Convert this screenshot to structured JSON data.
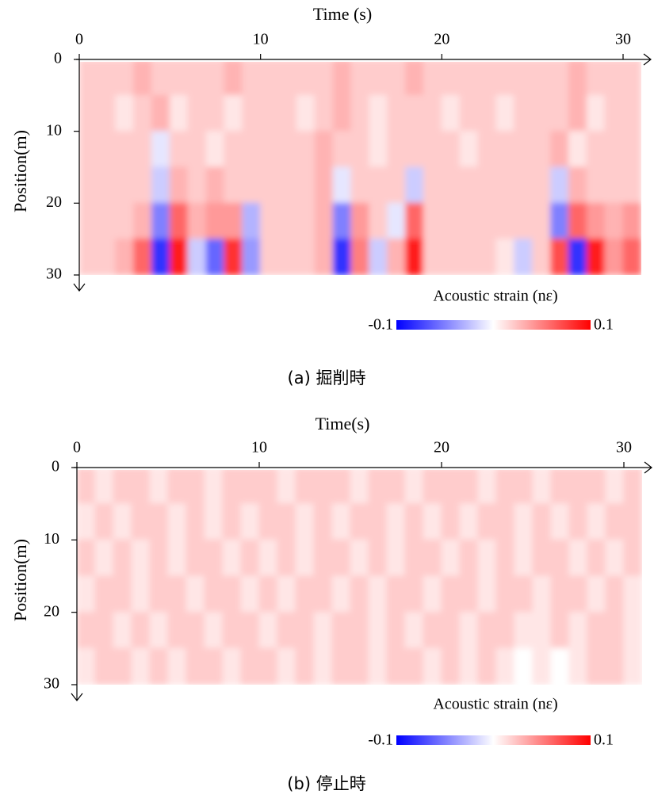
{
  "chart_data": [
    {
      "type": "heatmap",
      "x_label": "Time (s)",
      "y_label": "Position(m)",
      "caption": "(a) 掘削時",
      "xlim": [
        0,
        31
      ],
      "xticks": [
        0,
        10,
        20,
        30
      ],
      "ylim": [
        0,
        30
      ],
      "yticks": [
        0,
        10,
        20,
        30
      ],
      "colorbar_label": "Acoustic strain (nε)",
      "zlim": [
        -0.1,
        0.1
      ],
      "zticks": [
        -0.1,
        0.1
      ],
      "cmap": [
        "#0000ff",
        "#ffffff",
        "#ff0000"
      ],
      "values": [
        [
          0.02,
          0.02,
          0.02,
          0.03,
          0.02,
          0.02,
          0.02,
          0.02,
          0.03,
          0.02,
          0.02,
          0.02,
          0.02,
          0.02,
          0.03,
          0.02,
          0.02,
          0.02,
          0.03,
          0.02,
          0.02,
          0.02,
          0.02,
          0.02,
          0.02,
          0.02,
          0.02,
          0.03,
          0.02,
          0.02,
          0.02
        ],
        [
          0.02,
          0.02,
          0.01,
          0.02,
          0.03,
          0.01,
          0.02,
          0.02,
          0.01,
          0.02,
          0.02,
          0.02,
          0.01,
          0.02,
          0.03,
          0.02,
          0.01,
          0.02,
          0.02,
          0.02,
          0.01,
          0.02,
          0.02,
          0.01,
          0.02,
          0.02,
          0.02,
          0.03,
          0.01,
          0.02,
          0.02
        ],
        [
          0.02,
          0.02,
          0.02,
          0.02,
          -0.01,
          0.02,
          0.02,
          0.01,
          0.02,
          0.02,
          0.02,
          0.02,
          0.02,
          0.03,
          0.02,
          0.02,
          0.01,
          0.02,
          0.02,
          0.02,
          0.02,
          0.01,
          0.02,
          0.02,
          0.02,
          0.02,
          0.03,
          0.01,
          0.02,
          0.02,
          0.02
        ],
        [
          0.02,
          0.02,
          0.02,
          0.02,
          -0.02,
          0.03,
          0.02,
          0.03,
          0.02,
          0.02,
          0.02,
          0.02,
          0.02,
          0.03,
          -0.01,
          0.02,
          0.02,
          0.02,
          -0.02,
          0.02,
          0.02,
          0.02,
          0.02,
          0.02,
          0.02,
          0.02,
          -0.02,
          0.03,
          0.02,
          0.02,
          0.02
        ],
        [
          0.02,
          0.02,
          0.02,
          0.03,
          -0.05,
          0.06,
          0.03,
          0.04,
          0.04,
          -0.03,
          0.02,
          0.02,
          0.02,
          0.03,
          -0.05,
          0.04,
          0.02,
          -0.01,
          0.06,
          0.02,
          0.02,
          0.02,
          0.02,
          0.02,
          0.02,
          0.02,
          -0.05,
          0.06,
          0.04,
          0.03,
          0.04
        ],
        [
          0.02,
          0.02,
          0.03,
          0.06,
          -0.08,
          0.09,
          -0.02,
          -0.06,
          0.08,
          -0.04,
          0.02,
          0.02,
          0.02,
          0.03,
          -0.08,
          0.05,
          -0.02,
          0.03,
          0.09,
          0.02,
          0.02,
          0.02,
          0.02,
          0.01,
          -0.02,
          0.02,
          0.07,
          -0.08,
          0.09,
          0.04,
          0.06
        ]
      ]
    },
    {
      "type": "heatmap",
      "x_label": "Time(s)",
      "y_label": "Position(m)",
      "caption": "(b) 停止時",
      "xlim": [
        0,
        31
      ],
      "xticks": [
        0,
        10,
        20,
        30
      ],
      "ylim": [
        0,
        30
      ],
      "yticks": [
        0,
        10,
        20,
        30
      ],
      "colorbar_label": "Acoustic strain (nε)",
      "zlim": [
        -0.1,
        0.1
      ],
      "zticks": [
        -0.1,
        0.1
      ],
      "cmap": [
        "#0000ff",
        "#ffffff",
        "#ff0000"
      ],
      "values": [
        [
          0.02,
          0.01,
          0.02,
          0.02,
          0.01,
          0.02,
          0.02,
          0.01,
          0.02,
          0.02,
          0.02,
          0.01,
          0.02,
          0.02,
          0.02,
          0.01,
          0.02,
          0.02,
          0.01,
          0.02,
          0.02,
          0.02,
          0.01,
          0.02,
          0.02,
          0.01,
          0.02,
          0.02,
          0.02,
          0.01,
          0.02
        ],
        [
          0.01,
          0.02,
          0.01,
          0.02,
          0.02,
          0.01,
          0.02,
          0.01,
          0.02,
          0.01,
          0.02,
          0.02,
          0.01,
          0.02,
          0.01,
          0.02,
          0.02,
          0.01,
          0.02,
          0.01,
          0.02,
          0.01,
          0.02,
          0.02,
          0.01,
          0.02,
          0.01,
          0.02,
          0.01,
          0.02,
          0.02
        ],
        [
          0.02,
          0.01,
          0.02,
          0.01,
          0.02,
          0.01,
          0.02,
          0.02,
          0.01,
          0.02,
          0.01,
          0.02,
          0.01,
          0.02,
          0.02,
          0.01,
          0.02,
          0.01,
          0.02,
          0.02,
          0.01,
          0.02,
          0.01,
          0.02,
          0.01,
          0.02,
          0.02,
          0.01,
          0.02,
          0.01,
          0.02
        ],
        [
          0.01,
          0.02,
          0.02,
          0.01,
          0.02,
          0.02,
          0.01,
          0.02,
          0.02,
          0.01,
          0.02,
          0.01,
          0.02,
          0.02,
          0.01,
          0.02,
          0.01,
          0.02,
          0.02,
          0.01,
          0.02,
          0.02,
          0.01,
          0.02,
          0.02,
          0.01,
          0.02,
          0.02,
          0.01,
          0.02,
          0.01
        ],
        [
          0.02,
          0.02,
          0.01,
          0.02,
          0.01,
          0.02,
          0.02,
          0.01,
          0.02,
          0.02,
          0.01,
          0.02,
          0.02,
          0.01,
          0.02,
          0.02,
          0.01,
          0.02,
          0.01,
          0.02,
          0.02,
          0.01,
          0.02,
          0.02,
          0.01,
          0.01,
          0.02,
          0.01,
          0.02,
          0.02,
          0.01
        ],
        [
          0.01,
          0.02,
          0.02,
          0.01,
          0.02,
          0.01,
          0.02,
          0.02,
          0.01,
          0.02,
          0.02,
          0.01,
          0.02,
          0.01,
          0.02,
          0.02,
          0.01,
          0.02,
          0.02,
          0.01,
          0.02,
          0.01,
          0.02,
          0.01,
          0.0,
          0.01,
          0.0,
          0.01,
          0.02,
          0.02,
          0.01
        ]
      ]
    }
  ]
}
